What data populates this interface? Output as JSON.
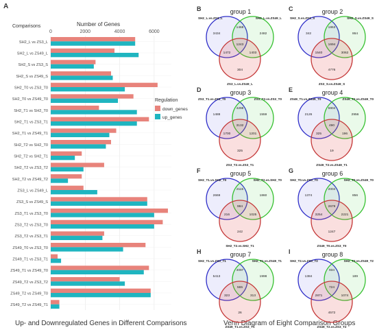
{
  "panel_a": {
    "label": "A",
    "caption": "Up- and Downregulated Genes in Different Comparisons"
  },
  "panel_venn": {
    "caption": "Venn Diagram of Eight Comparison Groups"
  },
  "chart_data": [
    {
      "type": "bar",
      "orientation": "horizontal",
      "title": "",
      "xlabel": "Number of Genes",
      "ylabel": "Comparisons",
      "xlim": [
        0,
        7000
      ],
      "xticks": [
        0,
        2000,
        4000,
        6000
      ],
      "legend": {
        "title": "Regulation",
        "placement": "right",
        "entries": [
          "down_genes",
          "up_genes"
        ]
      },
      "colors": {
        "down_genes": "#E8837B",
        "up_genes": "#1FB5C0"
      },
      "categories": [
        "SH2_L vs ZS3_L",
        "SH2_L vs ZS49_L",
        "SH2_S vs ZS3_S",
        "SH2_S vs ZS49_S",
        "SH2_T0 vs ZS3_T0",
        "SH2_T0 vs ZS49_T0",
        "SH2_T1 vs SH2_T0",
        "SH2_T1 vs ZS3_T1",
        "SH2_T1 vs ZS49_T1",
        "SH2_T2 vs SH2_T0",
        "SH2_T2 vs SH2_T1",
        "SH2_T2 vs ZS3_T2",
        "SH2_T2 vs ZS49_T2",
        "ZS3_L vs ZS49_L",
        "ZS3_S vs ZS49_S",
        "ZS3_T1 vs ZS3_T0",
        "ZS3_T2 vs ZS3_T0",
        "ZS3_T2 vs ZS3_T1",
        "ZS49_T0 vs ZS3_T0",
        "ZS49_T1 vs ZS3_T1",
        "ZS49_T1 vs ZS49_T0",
        "ZS49_T2 vs ZS3_T2",
        "ZS49_T2 vs ZS49_T0",
        "ZS49_T2 vs ZS49_T1"
      ],
      "series": [
        {
          "name": "down_genes",
          "values": [
            4900,
            3700,
            2600,
            3500,
            6200,
            4800,
            2800,
            5700,
            3800,
            3500,
            1800,
            3100,
            1800,
            1900,
            5600,
            6800,
            6500,
            3100,
            5500,
            400,
            5700,
            4000,
            5800,
            500
          ]
        },
        {
          "name": "up_genes",
          "values": [
            4900,
            5100,
            2500,
            3600,
            4300,
            3900,
            5000,
            5000,
            3400,
            3200,
            1400,
            1900,
            1000,
            2700,
            5600,
            6000,
            6000,
            3000,
            4200,
            600,
            5400,
            4300,
            5800,
            500
          ]
        }
      ]
    },
    {
      "type": "venn",
      "panel": "B",
      "title": "group 1",
      "sets": [
        "SH2_L.vs.ZS3_L",
        "SH2_L.vs.ZS49_L",
        "ZS3_L.vs.ZS49_L"
      ],
      "regions": {
        "a": "3434",
        "ab": "1468",
        "b": "2482",
        "abc": "1243",
        "ac": "1472",
        "bc": "1403",
        "c": "304"
      }
    },
    {
      "type": "venn",
      "panel": "C",
      "title": "group 2",
      "sets": [
        "SH2_S.vs.ZS3_S",
        "SH2_S.vs.ZS49_S",
        "ZS3_S.vs.ZS49_S"
      ],
      "regions": {
        "a": "342",
        "ab": "1863",
        "b": "864",
        "abc": "1694",
        "ac": "1540",
        "bc": "3062",
        "c": "4776"
      }
    },
    {
      "type": "venn",
      "panel": "D",
      "title": "group 3",
      "sets": [
        "ZS3_T1.vs.ZS3_T0",
        "ZS3_T2.vs.ZS3_T0",
        "ZS3_T2.vs.ZS3_T1"
      ],
      "regions": {
        "a": "1488",
        "ab": "4298",
        "b": "1559",
        "abc": "3132",
        "ac": "1700",
        "bc": "1201",
        "c": "325"
      }
    },
    {
      "type": "venn",
      "panel": "E",
      "title": "group 4",
      "sets": [
        "ZS49_T1.vs.ZS49_T0",
        "ZS49_T2.vs.ZS49_T0",
        "ZS49_T2.vs.ZS49_T1"
      ],
      "regions": {
        "a": "2126",
        "ab": "5904",
        "b": "2956",
        "abc": "490",
        "ac": "325",
        "bc": "196",
        "c": "19"
      }
    },
    {
      "type": "venn",
      "panel": "F",
      "title": "group 5",
      "sets": [
        "SH2_T1.vs.SH2_T0",
        "SH2_T2.vs.SH2_T0",
        "SH2_T2.vs.SH2_T1"
      ],
      "regions": {
        "a": "2669",
        "ab": "2115",
        "b": "1860",
        "abc": "984",
        "ac": "216",
        "bc": "1025",
        "c": "242"
      }
    },
    {
      "type": "venn",
      "panel": "G",
      "title": "group 6",
      "sets": [
        "SH2_T0.vs.ZS3_T0",
        "SH2_T0.vs.ZS49_T0",
        "ZS49_T0.vs.ZS3_T0"
      ],
      "regions": {
        "a": "1374",
        "ab": "2004",
        "b": "856",
        "abc": "2679",
        "ac": "3254",
        "bc": "2221",
        "c": "1247"
      }
    },
    {
      "type": "venn",
      "panel": "H",
      "title": "group 7",
      "sets": [
        "SH2_T1.vs.ZS3_T1",
        "SH2_T1.vs.ZS49_T1",
        "ZS49_T1.vs.ZS3_T1"
      ],
      "regions": {
        "a": "5413",
        "ab": "4097",
        "b": "1998",
        "abc": "565",
        "ac": "323",
        "bc": "313",
        "c": "26"
      }
    },
    {
      "type": "venn",
      "panel": "I",
      "title": "group 8",
      "sets": [
        "SH2_T2.vs.ZS3_T2",
        "SH2_T2.vs.ZS49_T2",
        "ZS49_T2.vs.ZS3_T2"
      ],
      "regions": {
        "a": "1384",
        "ab": "934",
        "b": "189",
        "abc": "724",
        "ac": "2871",
        "bc": "1074",
        "c": "4572"
      }
    }
  ]
}
